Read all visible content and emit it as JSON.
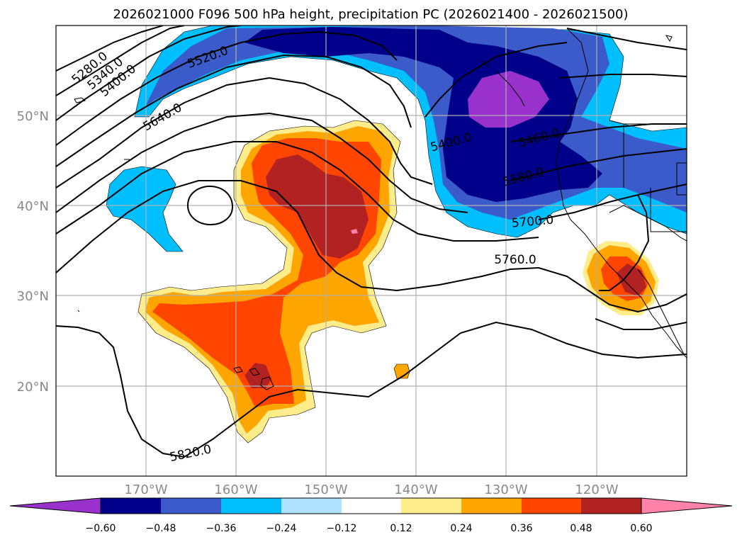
{
  "title": "2026021000 F096 500 hPa height, precipitation PC (2026021400 - 2026021500)",
  "lon_ticks": [
    "170°W",
    "160°W",
    "150°W",
    "140°W",
    "130°W",
    "120°W"
  ],
  "lat_ticks": [
    "50°N",
    "40°N",
    "30°N",
    "20°N"
  ],
  "colorbar": {
    "ticks": [
      "−0.60",
      "−0.48",
      "−0.36",
      "−0.24",
      "−0.12",
      "0.12",
      "0.24",
      "0.36",
      "0.48",
      "0.60"
    ],
    "colors": [
      "#9932cc",
      "#00008b",
      "#3a5bc9",
      "#00bfff",
      "#b0e2ff",
      "#ffffff",
      "#ffec8b",
      "#ffa500",
      "#ff4500",
      "#b22222",
      "#ff82ab",
      "#ff82ab"
    ]
  },
  "contours": {
    "c5280": "5280.0",
    "c5340": "5340.0",
    "c5400a": "5400.0",
    "c5520": "5520.0",
    "c5640": "5640.0",
    "c5400b": "5400.0",
    "c5460": "5460.0",
    "c5580": "5580.0",
    "c5700": "5700.0",
    "c5760": "5760.0",
    "c5820": "5820.0"
  }
}
